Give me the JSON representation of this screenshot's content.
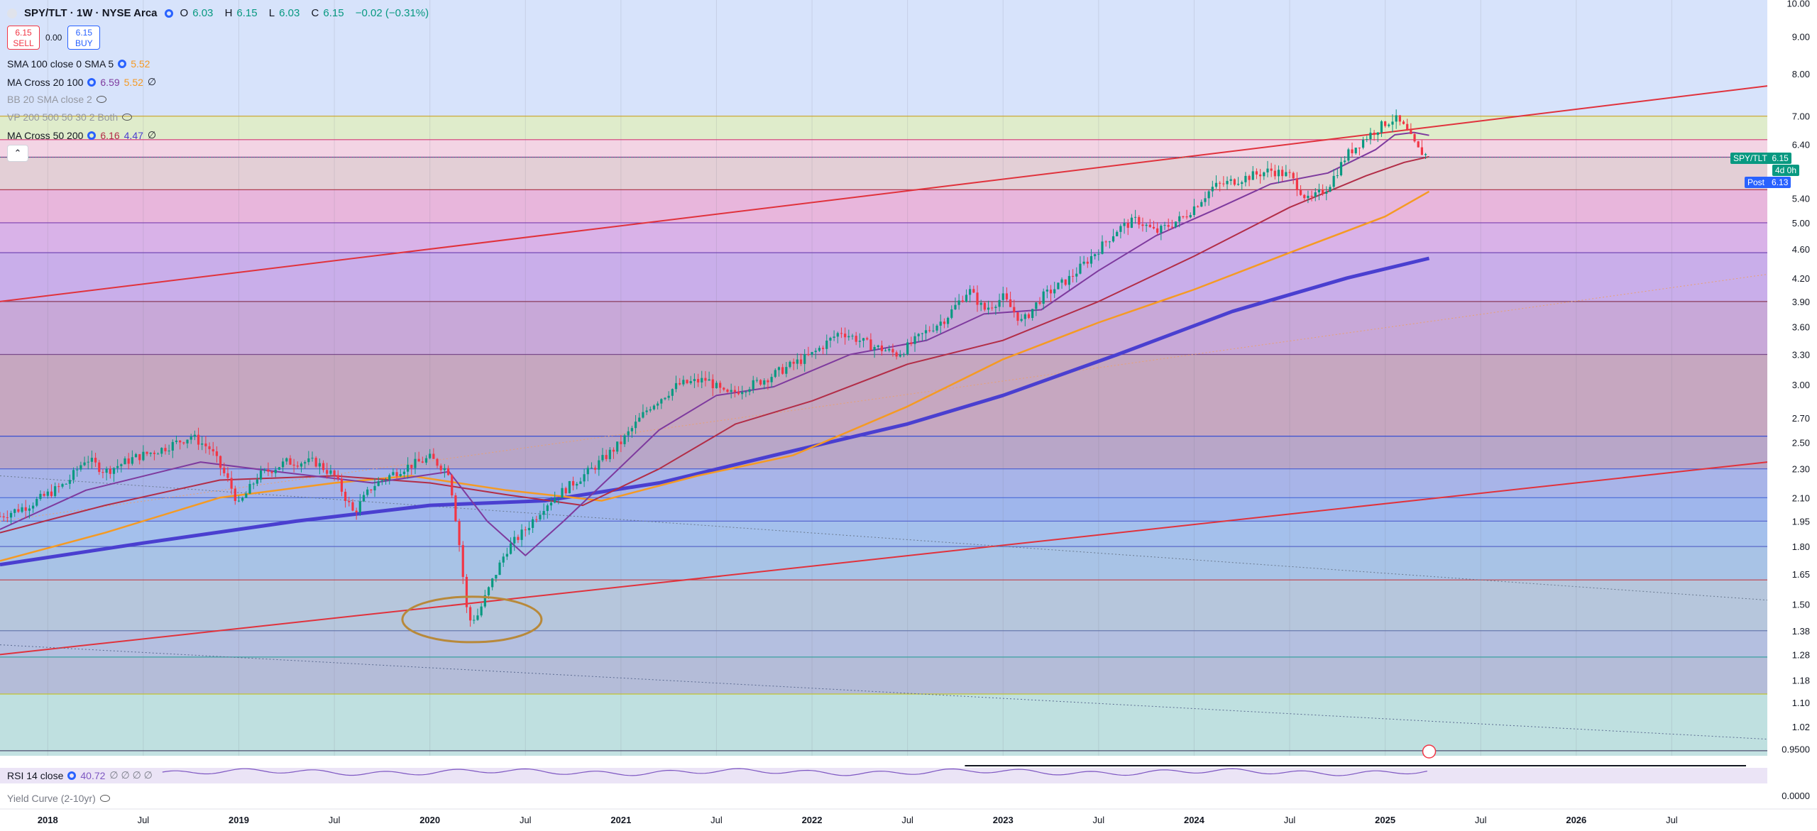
{
  "header": {
    "symbol": "SPY/TLT · 1W · NYSE Arca",
    "o_key": "O",
    "o_val": "6.03",
    "h_key": "H",
    "h_val": "6.15",
    "l_key": "L",
    "l_val": "6.03",
    "c_key": "C",
    "c_val": "6.15",
    "change": "−0.02 (−0.31%)"
  },
  "trade": {
    "sell_price": "6.15",
    "sell_label": "SELL",
    "spread": "0.00",
    "buy_price": "6.15",
    "buy_label": "BUY"
  },
  "indicators": {
    "sma": {
      "name": "SMA 100 close 0 SMA 5",
      "v1": "5.52"
    },
    "macross1": {
      "name": "MA Cross 20 100",
      "v1": "6.59",
      "v2": "5.52",
      "v3": "∅"
    },
    "bb": {
      "name": "BB 20 SMA close 2"
    },
    "vp": {
      "name": "VP 200 500 50 30 2 Both"
    },
    "macross2": {
      "name": "MA Cross 50 200",
      "v1": "6.16",
      "v2": "4.47",
      "v3": "∅"
    }
  },
  "rsi": {
    "name": "RSI 14 close",
    "v1": "40.72",
    "v2": "∅ ∅ ∅ ∅"
  },
  "yield_curve": {
    "name": "Yield Curve (2-10yr)"
  },
  "price_badges": {
    "symbol_label": "SPY/TLT",
    "price": "6.15",
    "countdown": "4d 0h",
    "post_label": "Post",
    "post_price": "6.13"
  },
  "colors": {
    "bull": "#089981",
    "bear": "#f23645",
    "ma20": "#7e3a9e",
    "ma50": "#b22d47",
    "ma100": "#f59a23",
    "ma200": "#4a3fd0",
    "trend": "#e0323c",
    "circle": "#b8893a"
  },
  "chart_data": {
    "type": "candlestick",
    "title": "SPY/TLT · 1W · NYSE Arca",
    "y_scale": "log",
    "ylim": [
      0.93,
      10.1
    ],
    "y_ticks": [
      "10.00",
      "9.00",
      "8.00",
      "7.00",
      "6.40",
      "5.40",
      "5.00",
      "4.60",
      "4.20",
      "3.90",
      "3.60",
      "3.30",
      "3.00",
      "2.70",
      "2.50",
      "2.30",
      "2.10",
      "1.95",
      "1.80",
      "1.65",
      "1.50",
      "1.38",
      "1.28",
      "1.18",
      "1.10",
      "1.02",
      "0.9500"
    ],
    "x_ticks": [
      "2018",
      "Jul",
      "2019",
      "Jul",
      "2020",
      "Jul",
      "2021",
      "Jul",
      "2022",
      "Jul",
      "2023",
      "Jul",
      "2024",
      "Jul",
      "2025",
      "Jul",
      "2026",
      "Jul"
    ],
    "x_tick_years": [
      2018.0,
      2018.5,
      2019.0,
      2019.5,
      2020.0,
      2020.5,
      2021.0,
      2021.5,
      2022.0,
      2022.5,
      2023.0,
      2023.5,
      2024.0,
      2024.5,
      2025.0,
      2025.5,
      2026.0,
      2026.5
    ],
    "xlim": [
      2017.75,
      2027.0
    ],
    "price_path": [
      [
        2017.75,
        1.98
      ],
      [
        2017.9,
        2.05
      ],
      [
        2018.1,
        2.2
      ],
      [
        2018.2,
        2.38
      ],
      [
        2018.3,
        2.28
      ],
      [
        2018.45,
        2.38
      ],
      [
        2018.6,
        2.45
      ],
      [
        2018.75,
        2.55
      ],
      [
        2018.85,
        2.45
      ],
      [
        2018.95,
        2.2
      ],
      [
        2019.0,
        2.05
      ],
      [
        2019.1,
        2.25
      ],
      [
        2019.25,
        2.35
      ],
      [
        2019.4,
        2.35
      ],
      [
        2019.5,
        2.25
      ],
      [
        2019.6,
        2.0
      ],
      [
        2019.7,
        2.18
      ],
      [
        2019.85,
        2.3
      ],
      [
        2020.0,
        2.38
      ],
      [
        2020.1,
        2.28
      ],
      [
        2020.15,
        1.85
      ],
      [
        2020.2,
        1.42
      ],
      [
        2020.25,
        1.45
      ],
      [
        2020.32,
        1.6
      ],
      [
        2020.4,
        1.78
      ],
      [
        2020.5,
        1.9
      ],
      [
        2020.6,
        2.05
      ],
      [
        2020.75,
        2.2
      ],
      [
        2020.85,
        2.3
      ],
      [
        2021.0,
        2.5
      ],
      [
        2021.15,
        2.8
      ],
      [
        2021.3,
        3.0
      ],
      [
        2021.45,
        3.05
      ],
      [
        2021.55,
        2.9
      ],
      [
        2021.75,
        3.05
      ],
      [
        2021.9,
        3.2
      ],
      [
        2022.0,
        3.3
      ],
      [
        2022.15,
        3.55
      ],
      [
        2022.3,
        3.4
      ],
      [
        2022.45,
        3.3
      ],
      [
        2022.6,
        3.55
      ],
      [
        2022.7,
        3.7
      ],
      [
        2022.82,
        4.05
      ],
      [
        2022.9,
        3.8
      ],
      [
        2023.0,
        3.95
      ],
      [
        2023.1,
        3.65
      ],
      [
        2023.2,
        3.95
      ],
      [
        2023.35,
        4.2
      ],
      [
        2023.5,
        4.6
      ],
      [
        2023.6,
        4.9
      ],
      [
        2023.7,
        5.05
      ],
      [
        2023.8,
        4.85
      ],
      [
        2023.95,
        5.1
      ],
      [
        2024.1,
        5.6
      ],
      [
        2024.25,
        5.75
      ],
      [
        2024.4,
        5.9
      ],
      [
        2024.5,
        5.8
      ],
      [
        2024.6,
        5.35
      ],
      [
        2024.7,
        5.6
      ],
      [
        2024.8,
        6.2
      ],
      [
        2024.9,
        6.55
      ],
      [
        2025.0,
        6.85
      ],
      [
        2025.05,
        6.95
      ],
      [
        2025.1,
        6.75
      ],
      [
        2025.17,
        6.3
      ],
      [
        2025.23,
        6.15
      ]
    ],
    "ma20_path": [
      [
        2017.75,
        1.9
      ],
      [
        2018.2,
        2.15
      ],
      [
        2018.8,
        2.35
      ],
      [
        2019.2,
        2.28
      ],
      [
        2019.7,
        2.2
      ],
      [
        2020.1,
        2.28
      ],
      [
        2020.3,
        1.95
      ],
      [
        2020.5,
        1.75
      ],
      [
        2020.7,
        1.95
      ],
      [
        2020.95,
        2.25
      ],
      [
        2021.2,
        2.6
      ],
      [
        2021.5,
        2.9
      ],
      [
        2021.8,
        2.98
      ],
      [
        2022.2,
        3.3
      ],
      [
        2022.6,
        3.45
      ],
      [
        2022.9,
        3.75
      ],
      [
        2023.2,
        3.8
      ],
      [
        2023.5,
        4.3
      ],
      [
        2023.8,
        4.8
      ],
      [
        2024.1,
        5.2
      ],
      [
        2024.4,
        5.65
      ],
      [
        2024.7,
        5.85
      ],
      [
        2024.95,
        6.3
      ],
      [
        2025.05,
        6.6
      ],
      [
        2025.15,
        6.65
      ],
      [
        2025.23,
        6.59
      ]
    ],
    "ma50_path": [
      [
        2017.75,
        1.88
      ],
      [
        2018.3,
        2.05
      ],
      [
        2018.9,
        2.22
      ],
      [
        2019.5,
        2.25
      ],
      [
        2020.0,
        2.2
      ],
      [
        2020.4,
        2.12
      ],
      [
        2020.8,
        2.05
      ],
      [
        2021.2,
        2.3
      ],
      [
        2021.6,
        2.65
      ],
      [
        2022.0,
        2.85
      ],
      [
        2022.5,
        3.2
      ],
      [
        2023.0,
        3.45
      ],
      [
        2023.5,
        3.9
      ],
      [
        2024.0,
        4.5
      ],
      [
        2024.5,
        5.25
      ],
      [
        2024.9,
        5.8
      ],
      [
        2025.1,
        6.05
      ],
      [
        2025.23,
        6.16
      ]
    ],
    "ma100_path": [
      [
        2017.75,
        1.72
      ],
      [
        2018.3,
        1.88
      ],
      [
        2018.9,
        2.1
      ],
      [
        2019.5,
        2.2
      ],
      [
        2019.9,
        2.25
      ],
      [
        2020.4,
        2.15
      ],
      [
        2020.9,
        2.08
      ],
      [
        2021.4,
        2.25
      ],
      [
        2021.9,
        2.4
      ],
      [
        2022.5,
        2.8
      ],
      [
        2023.0,
        3.25
      ],
      [
        2023.5,
        3.65
      ],
      [
        2024.0,
        4.05
      ],
      [
        2024.5,
        4.55
      ],
      [
        2025.0,
        5.1
      ],
      [
        2025.23,
        5.52
      ]
    ],
    "ma200_path": [
      [
        2017.75,
        1.7
      ],
      [
        2018.5,
        1.82
      ],
      [
        2019.3,
        1.95
      ],
      [
        2020.0,
        2.05
      ],
      [
        2020.6,
        2.08
      ],
      [
        2021.2,
        2.2
      ],
      [
        2021.8,
        2.4
      ],
      [
        2022.5,
        2.65
      ],
      [
        2023.0,
        2.9
      ],
      [
        2023.6,
        3.3
      ],
      [
        2024.2,
        3.78
      ],
      [
        2024.8,
        4.2
      ],
      [
        2025.23,
        4.47
      ]
    ],
    "trend_upper": [
      [
        2017.75,
        3.9
      ],
      [
        2027.0,
        7.7
      ]
    ],
    "trend_lower": [
      [
        2017.75,
        1.28
      ],
      [
        2027.0,
        2.35
      ]
    ],
    "trend_mid_dotted": [
      [
        2017.75,
        1.95
      ],
      [
        2027.0,
        4.25
      ]
    ],
    "trend_down_dotted": [
      [
        2017.75,
        1.32
      ],
      [
        2027.0,
        0.98
      ]
    ],
    "trend_down_dotted2": [
      [
        2017.75,
        2.25
      ],
      [
        2027.0,
        1.52
      ]
    ],
    "h_levels": [
      7.0,
      6.5,
      6.15,
      5.55,
      5.0,
      4.55,
      3.9,
      3.3,
      2.55,
      2.3,
      2.1,
      1.95,
      1.8,
      1.62,
      1.38,
      1.27,
      1.13,
      0.945
    ],
    "last_price": 6.15,
    "post_price": 6.13
  }
}
